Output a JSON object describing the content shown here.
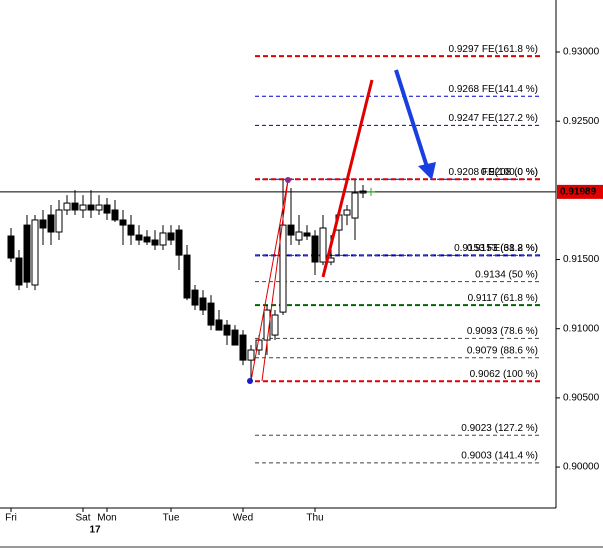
{
  "chart_data": {
    "type": "candlestick",
    "categories": [
      "Fri",
      null,
      null,
      null,
      null,
      null,
      null,
      null,
      null,
      "Sat",
      null,
      null,
      "Mon",
      null,
      null,
      null,
      null,
      null,
      null,
      null,
      "Tue",
      null,
      null,
      null,
      null,
      null,
      null,
      null,
      null,
      "Wed",
      null,
      null,
      null,
      null,
      null,
      null,
      null,
      null,
      "Thu",
      null,
      null,
      null,
      null,
      null,
      null
    ],
    "subcategory_label": "17",
    "open": [
      0.9167,
      0.91511,
      0.91749,
      0.91316,
      0.91786,
      0.91822,
      0.91699,
      0.91858,
      0.91908,
      0.91858,
      0.91894,
      0.91858,
      0.91894,
      0.91858,
      0.91786,
      0.91749,
      0.91677,
      0.91663,
      0.91641,
      0.91605,
      0.91692,
      0.91713,
      0.91532,
      0.91279,
      0.91222,
      0.91185,
      0.91063,
      0.91026,
      0.9099,
      0.90954,
      0.90773,
      0.90846,
      0.90918,
      0.90954,
      0.9112,
      0.91749,
      0.91641,
      0.91692,
      0.9167,
      0.91482,
      0.91482,
      0.91713,
      0.91822,
      0.918,
      0.91981
    ],
    "high": [
      0.91728,
      0.91569,
      0.91822,
      0.91822,
      0.91858,
      0.91894,
      0.9193,
      0.91966,
      0.92002,
      0.91966,
      0.92002,
      0.91966,
      0.91945,
      0.9193,
      0.91858,
      0.91822,
      0.91749,
      0.91713,
      0.91713,
      0.91749,
      0.91749,
      0.91749,
      0.91605,
      0.91316,
      0.91279,
      0.91243,
      0.91135,
      0.91063,
      0.91026,
      0.9099,
      0.90882,
      0.90954,
      0.91171,
      0.91135,
      0.92075,
      0.92017,
      0.91822,
      0.91749,
      0.91713,
      0.91822,
      0.91677,
      0.91858,
      0.91894,
      0.92075,
      0.92039
    ],
    "low": [
      0.91482,
      0.91279,
      0.91294,
      0.91279,
      0.91605,
      0.91605,
      0.91641,
      0.91822,
      0.91822,
      0.918,
      0.918,
      0.91822,
      0.91786,
      0.91771,
      0.91605,
      0.91605,
      0.91605,
      0.91605,
      0.91569,
      0.91569,
      0.91605,
      0.91424,
      0.91207,
      0.91135,
      0.91099,
      0.9099,
      0.9099,
      0.90882,
      0.90882,
      0.90737,
      0.9062,
      0.9081,
      0.9081,
      0.90918,
      0.91099,
      0.91605,
      0.91605,
      0.91641,
      0.91388,
      0.9146,
      0.9146,
      0.91532,
      0.91749,
      0.91641,
      0.91945
    ],
    "close": [
      0.91511,
      0.91316,
      0.91337,
      0.91786,
      0.91728,
      0.91699,
      0.91858,
      0.91908,
      0.91858,
      0.91894,
      0.91858,
      0.91894,
      0.91836,
      0.91786,
      0.91749,
      0.91677,
      0.91641,
      0.91627,
      0.91605,
      0.91692,
      0.91641,
      0.91532,
      0.91222,
      0.91171,
      0.91135,
      0.91026,
      0.9099,
      0.90954,
      0.90882,
      0.90773,
      0.90846,
      0.90918,
      0.91135,
      0.91099,
      0.91749,
      0.91677,
      0.91699,
      0.9167,
      0.91482,
      0.91728,
      0.91511,
      0.91822,
      0.91858,
      0.91981,
      0.91995
    ],
    "up_color": "#ffffff",
    "down_color": "#000000",
    "ylim": [
      0.89704,
      0.93376
    ],
    "yticks": [
      {
        "value": 0.93,
        "label": "0.93000"
      },
      {
        "value": 0.925,
        "label": "0.92500"
      },
      {
        "value": 0.915,
        "label": "0.91500"
      },
      {
        "value": 0.91,
        "label": "0.91000"
      },
      {
        "value": 0.905,
        "label": "0.90500"
      },
      {
        "value": 0.9,
        "label": "0.90000"
      }
    ],
    "last_price": {
      "value": 0.91989,
      "label": "0.91989",
      "color": "#e00000"
    },
    "levels": [
      {
        "value": 0.9297,
        "label": "0.9297 FE(161.8 %)",
        "color": "#e00000",
        "width": 2
      },
      {
        "value": 0.9268,
        "label": "0.9268 FE(141.4 %)",
        "color": "#0000cc",
        "width": 1
      },
      {
        "value": 0.9247,
        "label": "0.9247 FE(127.2 %)",
        "color": "#0000cc",
        "width": 1
      },
      {
        "value": 0.9208,
        "label": "0.9208 FE(100.0 %)",
        "color": "#0000cc",
        "width": 1
      },
      {
        "value": 0.9208,
        "label": "0.9208 (0 %)",
        "color": "#e00000",
        "width": 2
      },
      {
        "value": 0.9153,
        "label": "0.9153 FE(61.8 %)",
        "color": "#0000cc",
        "width": 2
      },
      {
        "value": 0.9153,
        "label": "0.9153 (38.2 %)",
        "color": "#444444",
        "width": 1
      },
      {
        "value": 0.9134,
        "label": "0.9134 (50 %)",
        "color": "#444444",
        "width": 1
      },
      {
        "value": 0.9117,
        "label": "0.9117 (61.8 %)",
        "color": "#006600",
        "width": 2
      },
      {
        "value": 0.9093,
        "label": "0.9093 (78.6 %)",
        "color": "#444444",
        "width": 1
      },
      {
        "value": 0.9079,
        "label": "0.9079 (88.6 %)",
        "color": "#444444",
        "width": 1
      },
      {
        "value": 0.9062,
        "label": "0.9062 (100 %)",
        "color": "#e00000",
        "width": 2
      },
      {
        "value": 0.9023,
        "label": "0.9023 (127.2 %)",
        "color": "#444444",
        "width": 1
      },
      {
        "value": 0.9003,
        "label": "0.9003 (141.4 %)",
        "color": "#444444",
        "width": 1
      }
    ]
  }
}
